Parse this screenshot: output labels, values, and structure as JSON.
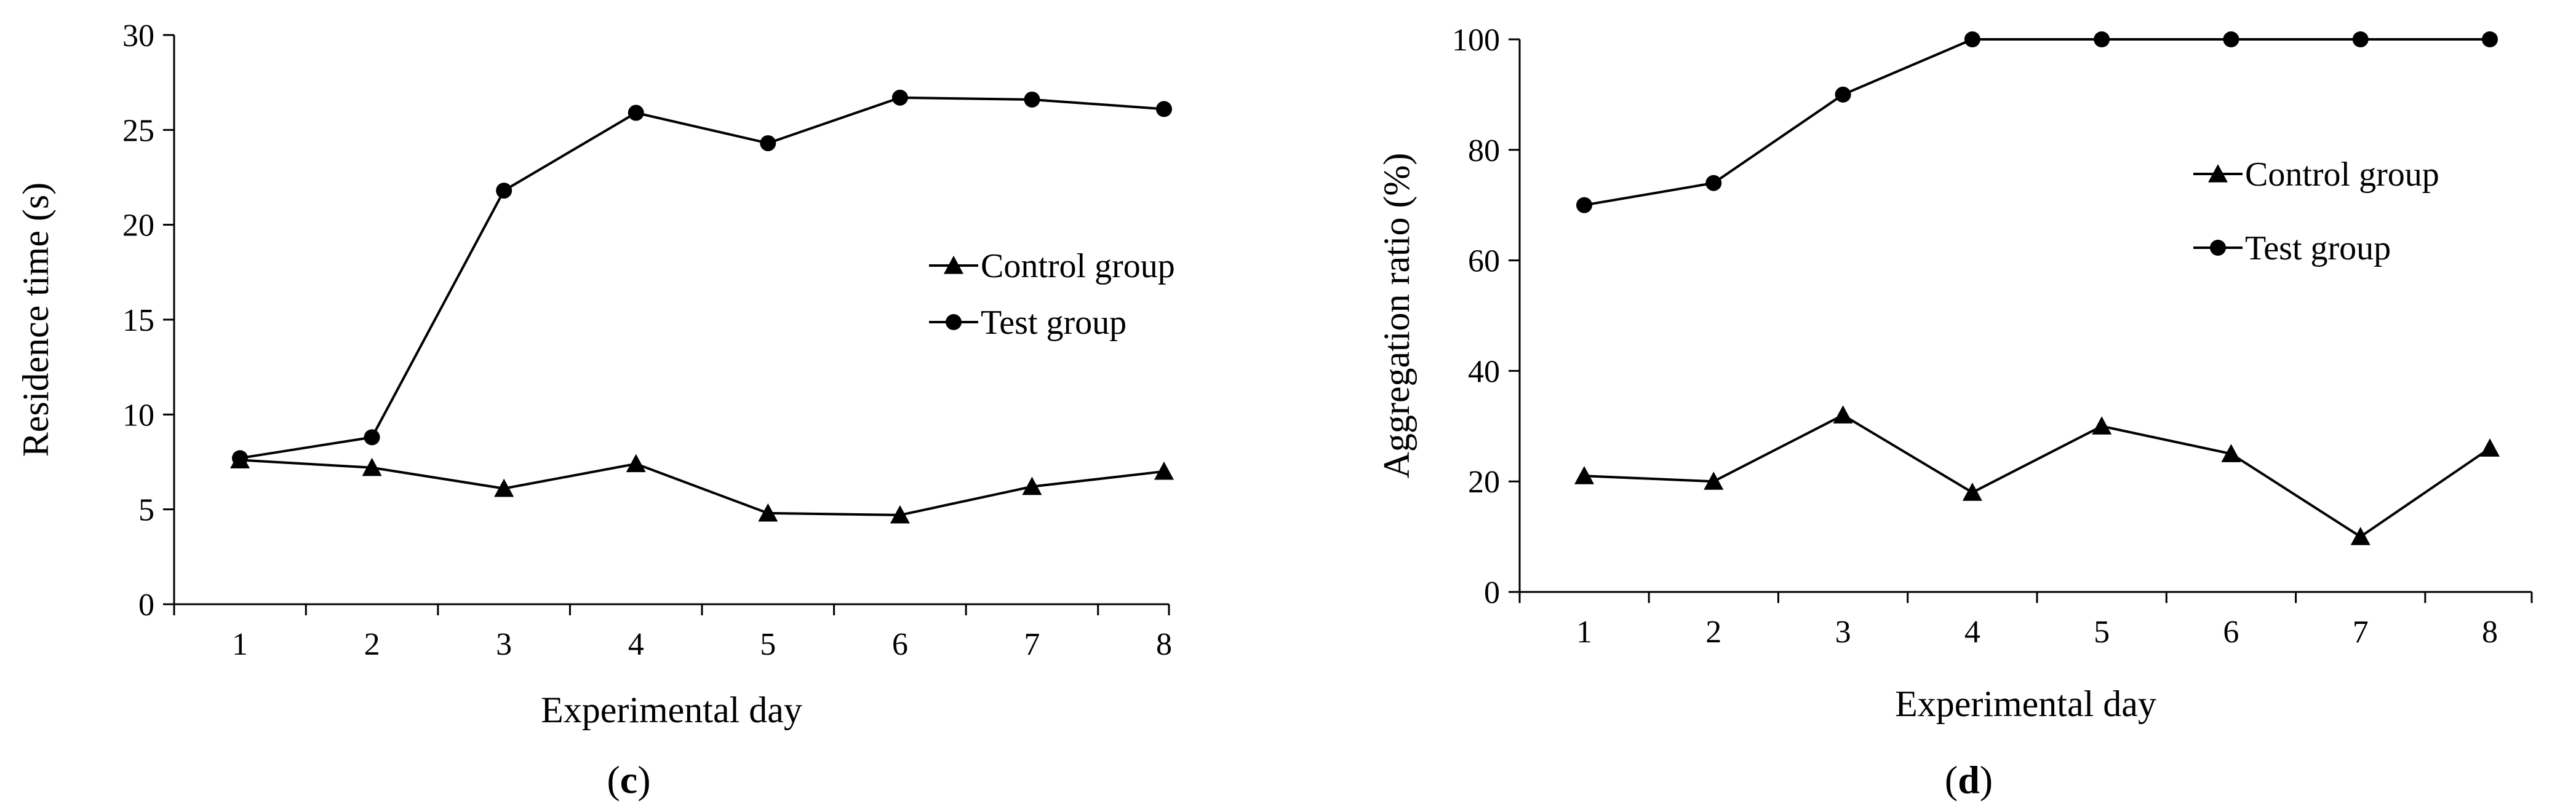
{
  "chart_data": [
    {
      "type": "line",
      "panel_label": "c",
      "xlabel": "Experimental day",
      "ylabel": "Residence time (s)",
      "ylim": [
        0,
        30
      ],
      "yticks": [
        0,
        5,
        10,
        15,
        20,
        25,
        30
      ],
      "categories": [
        "1",
        "2",
        "3",
        "4",
        "5",
        "6",
        "7",
        "8"
      ],
      "legend_position": "right-middle",
      "series": [
        {
          "name": "Control group",
          "marker": "triangle",
          "values": [
            7.6,
            7.2,
            6.1,
            7.4,
            4.8,
            4.7,
            6.2,
            7.0
          ]
        },
        {
          "name": "Test group",
          "marker": "circle",
          "values": [
            7.7,
            8.8,
            21.8,
            25.9,
            24.3,
            26.7,
            26.6,
            26.1
          ]
        }
      ]
    },
    {
      "type": "line",
      "panel_label": "d",
      "xlabel": "Experimental day",
      "ylabel": "Aggregation ratio (%)",
      "ylim": [
        0,
        100
      ],
      "yticks": [
        0,
        20,
        40,
        60,
        80,
        100
      ],
      "categories": [
        "1",
        "2",
        "3",
        "4",
        "5",
        "6",
        "7",
        "8"
      ],
      "legend_position": "top-right",
      "series": [
        {
          "name": "Control group",
          "marker": "triangle",
          "values": [
            21,
            20,
            32,
            18,
            30,
            25,
            10,
            26
          ]
        },
        {
          "name": "Test group",
          "marker": "circle",
          "values": [
            70,
            74,
            90,
            100,
            100,
            100,
            100,
            100
          ]
        }
      ]
    }
  ]
}
